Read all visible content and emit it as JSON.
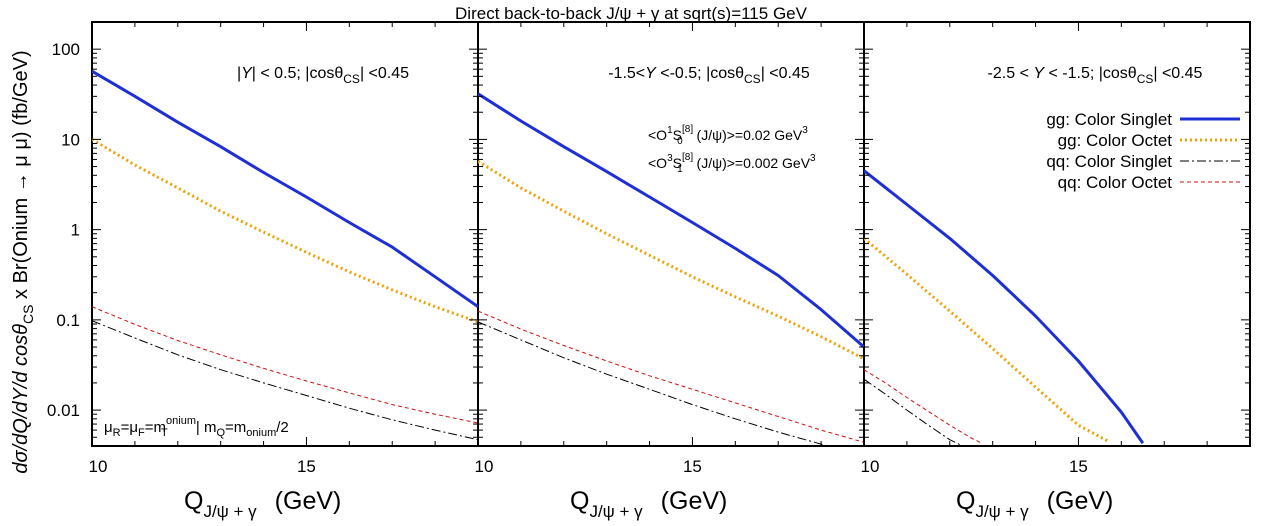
{
  "chart_data": {
    "type": "line",
    "title": "Direct back-to-back  J/ψ + γ at sqrt(s)=115 GeV",
    "ylabel": "dσ/dQ/dY/d cosθCS x Br(Onium → μ μ) (fb/GeV)",
    "ylabel_parts": [
      "dσ/dQ/dY/d cosθ",
      "CS",
      " x Br(Onium → μ μ) (fb/GeV)"
    ],
    "xlabel_parts": [
      "Q",
      "J/ψ + γ",
      "(GeV)"
    ],
    "xlabel": "QJ/ψ + γ (GeV)",
    "yscale": "log",
    "ylim": [
      0.004,
      200
    ],
    "y_ticks": [
      {
        "value": 100,
        "label": "100"
      },
      {
        "value": 10,
        "label": "10"
      },
      {
        "value": 1,
        "label": "1"
      },
      {
        "value": 0.1,
        "label": "0.1"
      },
      {
        "value": 0.01,
        "label": "0.01"
      }
    ],
    "xlim": [
      10,
      19
    ],
    "x_ticks": [
      {
        "value": 10,
        "label": "10"
      },
      {
        "value": 15,
        "label": "15"
      }
    ],
    "grid": false,
    "legend": {
      "placement": "top-right of right panel",
      "entries": [
        {
          "label": "gg: Color Singlet",
          "color": "#1f2fd6",
          "style": "solid"
        },
        {
          "label": "gg: Color Octet",
          "color": "#f0a000",
          "style": "dotted"
        },
        {
          "label": "qq: Color Singlet",
          "color": "#000000",
          "style": "dashdot"
        },
        {
          "label": "qq: Color Octet",
          "color": "#d01010",
          "style": "dashed"
        }
      ]
    },
    "annotations": {
      "ldme_1s0": {
        "pre": "<O",
        "sup": "1",
        "mid": "S",
        "sub": "0",
        "sup2": "[8]",
        "post": " (J/ψ)>=0.02 GeV",
        "exp": "3"
      },
      "ldme_3s1": {
        "pre": "<O",
        "sup": "3",
        "mid": "S",
        "sub": "1",
        "sup2": "[8]",
        "post": " (J/ψ)>=0.002 GeV",
        "exp": "3"
      },
      "scale": {
        "a": "μ",
        "a_sub": "R",
        "b": "=μ",
        "b_sub": "F",
        "c": "=m",
        "c_sub": "T",
        "c_sup": "onium",
        "d": " | m",
        "d_sub": "Q",
        "e": "=m",
        "e_sub": "onium",
        "f": "/2"
      }
    },
    "panels": [
      {
        "cut_text": {
          "p1": "|",
          "Y": "Y",
          "p2": "| < 0.5; |cosθ",
          "sub": "CS",
          "p3": "| <0.45"
        },
        "series": [
          {
            "name": "gg: Color Singlet",
            "x": [
              10,
              11,
              12,
              13,
              14,
              15,
              16,
              17,
              18,
              19
            ],
            "y": [
              57,
              30,
              15.5,
              8.3,
              4.3,
              2.3,
              1.2,
              0.64,
              0.3,
              0.14
            ]
          },
          {
            "name": "gg: Color Octet",
            "x": [
              10,
              11,
              12,
              13,
              14,
              15,
              16,
              17,
              18,
              19
            ],
            "y": [
              10,
              5.2,
              2.9,
              1.6,
              0.94,
              0.56,
              0.34,
              0.215,
              0.14,
              0.095
            ]
          },
          {
            "name": "qq: Color Singlet",
            "x": [
              10,
              11,
              12,
              13,
              14,
              15,
              16,
              17,
              18,
              19
            ],
            "y": [
              0.098,
              0.063,
              0.041,
              0.028,
              0.02,
              0.0145,
              0.0105,
              0.0078,
              0.006,
              0.0047
            ]
          },
          {
            "name": "qq: Color Octet",
            "x": [
              10,
              11,
              12,
              13,
              14,
              15,
              16,
              17,
              18,
              19
            ],
            "y": [
              0.14,
              0.089,
              0.059,
              0.041,
              0.029,
              0.021,
              0.0155,
              0.0115,
              0.009,
              0.0072
            ]
          }
        ]
      },
      {
        "cut_text": {
          "p1": "-1.5<",
          "Y": "Y",
          "p2": " <-0.5; |cosθ",
          "sub": "CS",
          "p3": "| <0.45"
        },
        "series": [
          {
            "name": "gg: Color Singlet",
            "x": [
              10,
              11,
              12,
              13,
              14,
              15,
              16,
              17,
              18,
              19
            ],
            "y": [
              32,
              16,
              8.3,
              4.4,
              2.3,
              1.2,
              0.62,
              0.31,
              0.13,
              0.05
            ]
          },
          {
            "name": "gg: Color Octet",
            "x": [
              10,
              11,
              12,
              13,
              14,
              15,
              16,
              17,
              18,
              19
            ],
            "y": [
              5.7,
              2.9,
              1.6,
              0.9,
              0.52,
              0.3,
              0.18,
              0.11,
              0.065,
              0.037
            ]
          },
          {
            "name": "qq: Color Singlet",
            "x": [
              10,
              11,
              12,
              13,
              14,
              15,
              16,
              17,
              18,
              19
            ],
            "y": [
              0.095,
              0.06,
              0.038,
              0.025,
              0.017,
              0.0115,
              0.008,
              0.0057,
              0.0042,
              0.0032
            ]
          },
          {
            "name": "qq: Color Octet",
            "x": [
              10,
              11,
              12,
              13,
              14,
              15,
              16,
              17,
              18,
              19
            ],
            "y": [
              0.125,
              0.079,
              0.052,
              0.035,
              0.024,
              0.017,
              0.012,
              0.0085,
              0.006,
              0.0044
            ]
          }
        ]
      },
      {
        "cut_text": {
          "p1": "-2.5 < ",
          "Y": "Y",
          "p2": "  < -1.5; |cosθ",
          "sub": "CS",
          "p3": "| <0.45"
        },
        "series": [
          {
            "name": "gg: Color Singlet",
            "x": [
              10,
              11,
              12,
              13,
              14,
              15,
              16,
              16.5
            ],
            "y": [
              4.5,
              1.9,
              0.8,
              0.31,
              0.11,
              0.035,
              0.0095,
              0.0043
            ]
          },
          {
            "name": "gg: Color Octet",
            "x": [
              10,
              11,
              12,
              13,
              14,
              15,
              15.7
            ],
            "y": [
              0.8,
              0.32,
              0.125,
              0.048,
              0.018,
              0.0068,
              0.0045
            ]
          },
          {
            "name": "qq: Color Singlet",
            "x": [
              10,
              10.5,
              11,
              11.5,
              12,
              12.25
            ],
            "y": [
              0.022,
              0.015,
              0.01,
              0.0068,
              0.0047,
              0.0041
            ]
          },
          {
            "name": "qq: Color Octet",
            "x": [
              10,
              10.5,
              11,
              11.5,
              12,
              12.5,
              12.75
            ],
            "y": [
              0.028,
              0.02,
              0.0138,
              0.0097,
              0.0068,
              0.0049,
              0.0043
            ]
          }
        ]
      }
    ]
  }
}
